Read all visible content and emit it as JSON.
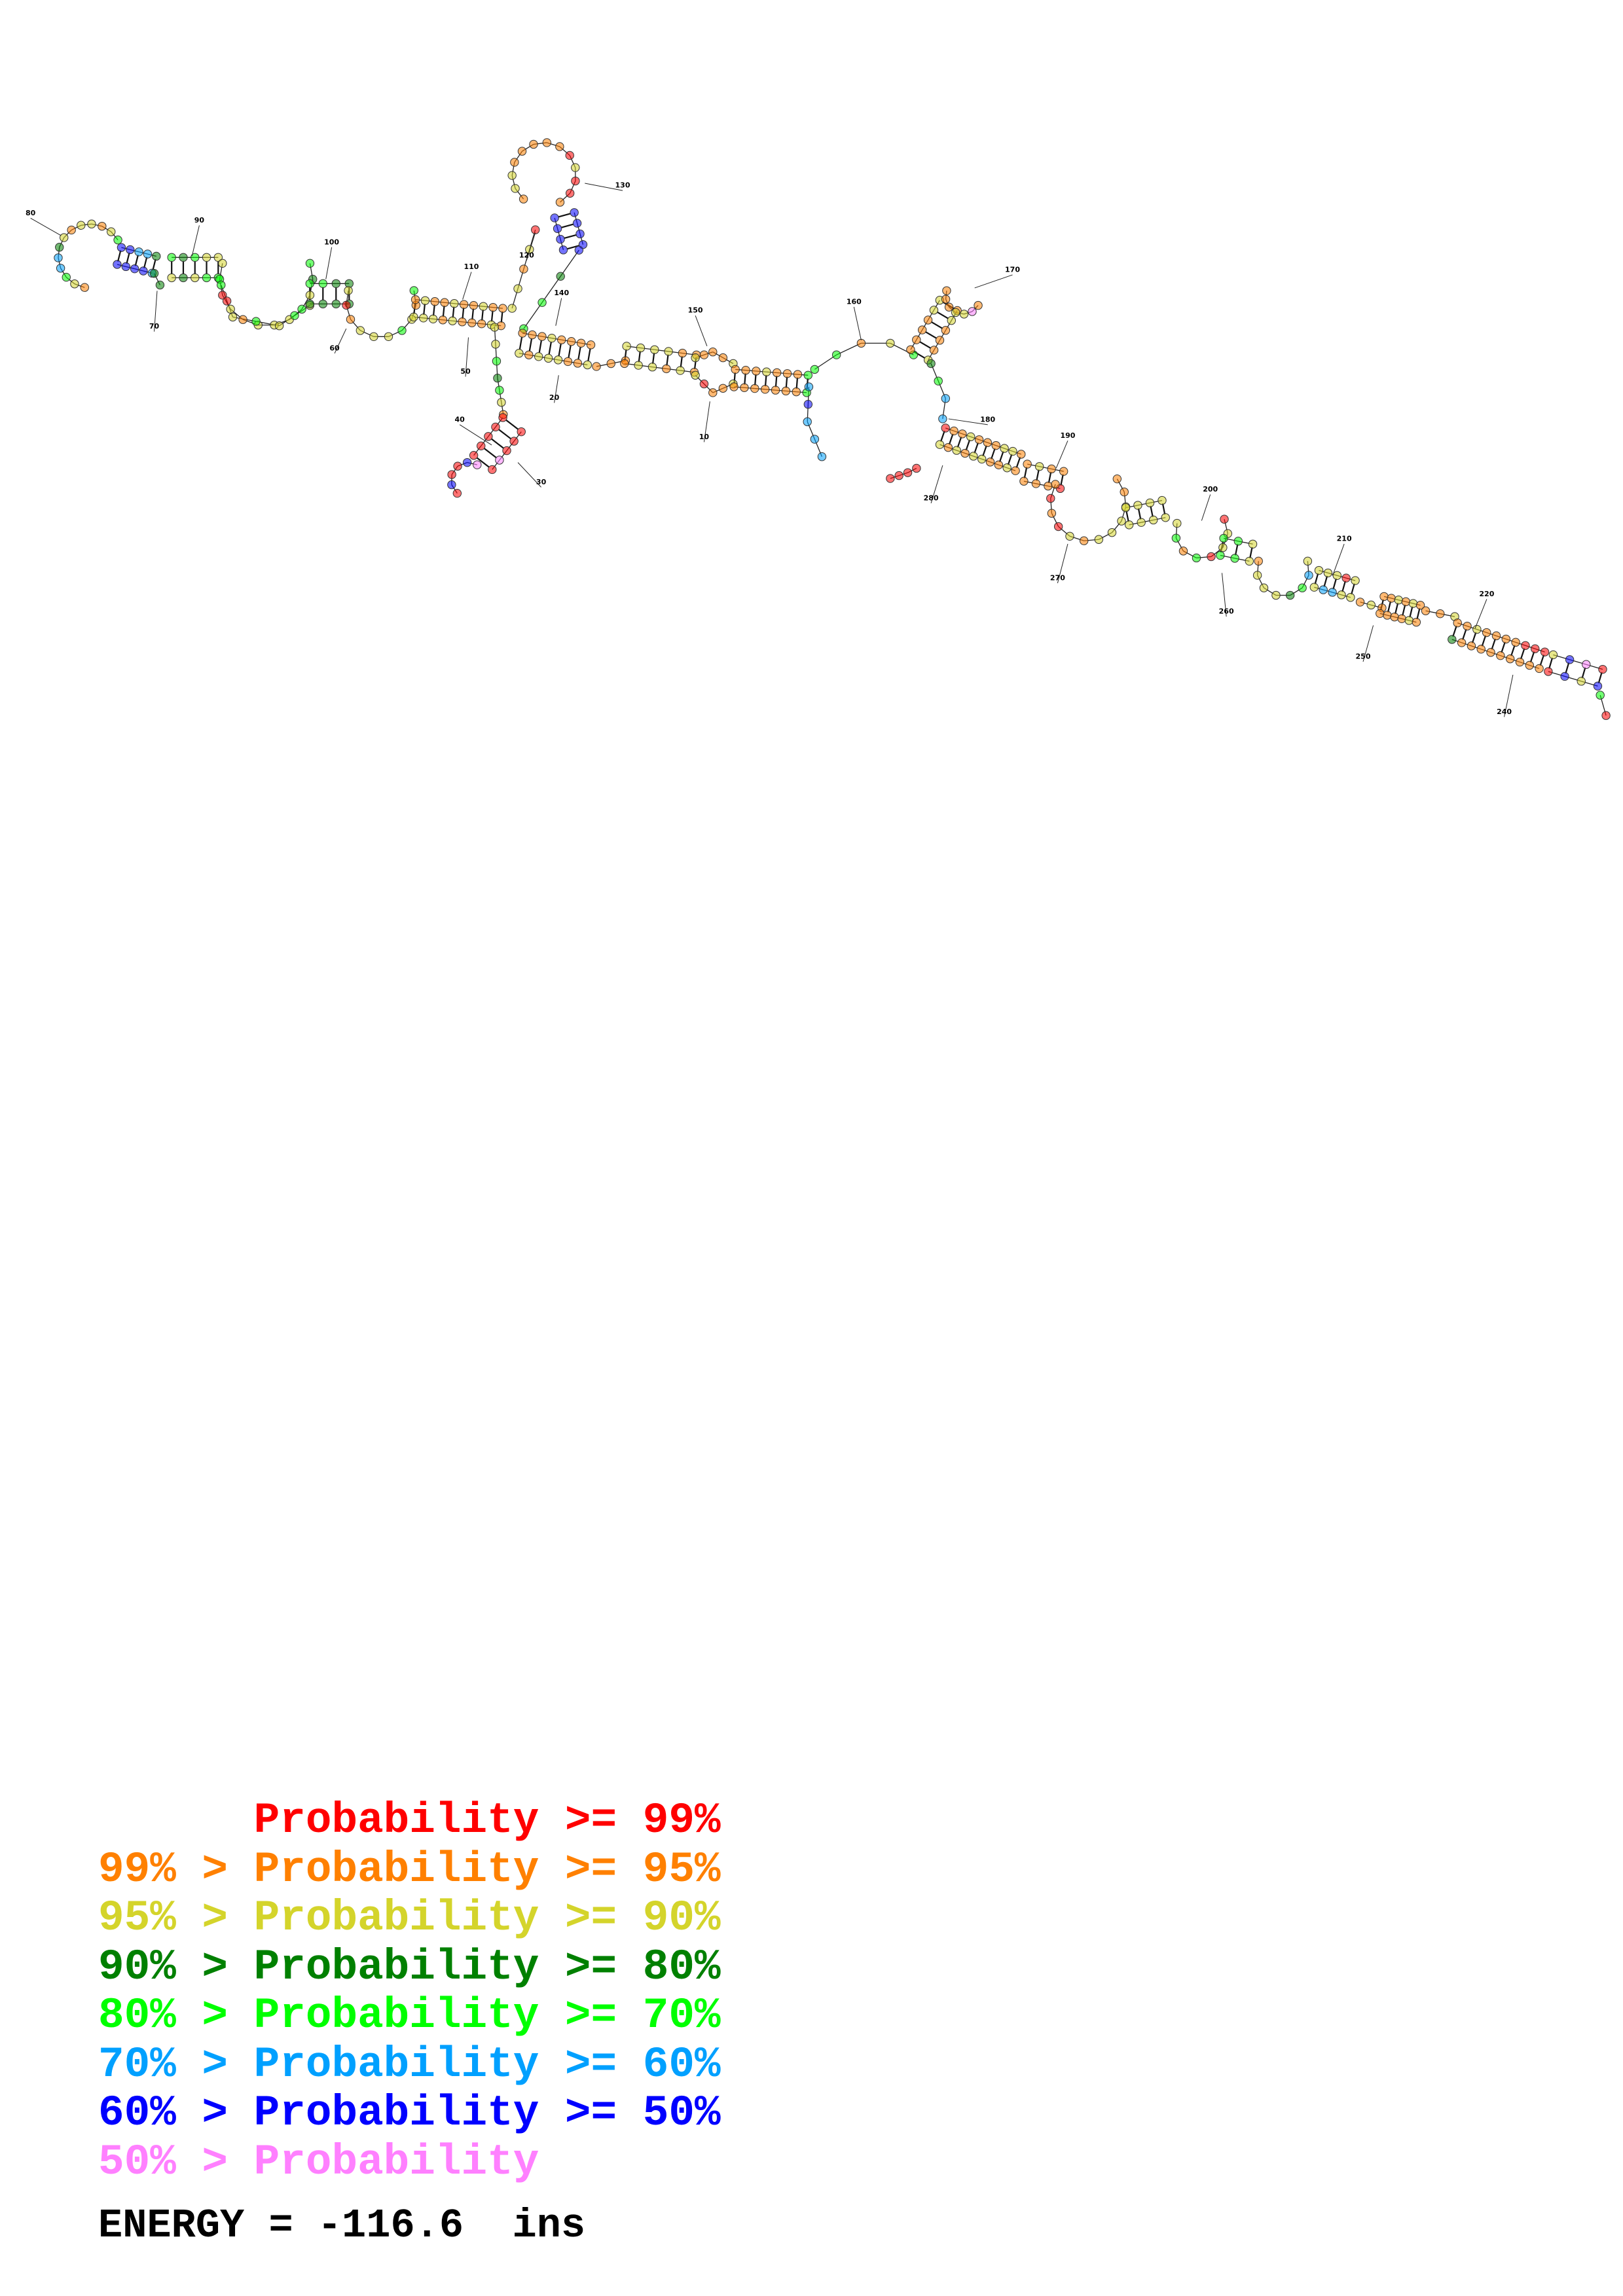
{
  "diagram": {
    "position_labels": [
      "10",
      "20",
      "30",
      "40",
      "50",
      "60",
      "70",
      "80",
      "90",
      "100",
      "110",
      "120",
      "130",
      "140",
      "150",
      "160",
      "170",
      "180",
      "190",
      "200",
      "210",
      "220",
      "240",
      "250",
      "260",
      "270",
      "280"
    ],
    "probability_colors": {
      "p99": "#ff0000",
      "p95": "#ff8000",
      "p90": "#d4d42b",
      "p80": "#008000",
      "p70": "#00ff00",
      "p60": "#00a0ff",
      "p50": "#0000ff",
      "plow": "#ff80ff"
    }
  },
  "legend": {
    "rows": [
      {
        "prefix": "",
        "label": "Probability",
        "suffix": ">= 99%",
        "color": "#ff0000"
      },
      {
        "prefix": "99% >",
        "label": "Probability",
        "suffix": ">= 95%",
        "color": "#ff8000"
      },
      {
        "prefix": "95% >",
        "label": "Probability",
        "suffix": ">= 90%",
        "color": "#d4d42b"
      },
      {
        "prefix": "90% >",
        "label": "Probability",
        "suffix": ">= 80%",
        "color": "#008000"
      },
      {
        "prefix": "80% >",
        "label": "Probability",
        "suffix": ">= 70%",
        "color": "#00ff00"
      },
      {
        "prefix": "70% >",
        "label": "Probability",
        "suffix": ">= 60%",
        "color": "#00a0ff"
      },
      {
        "prefix": "60% >",
        "label": "Probability",
        "suffix": ">= 50%",
        "color": "#0000ff"
      },
      {
        "prefix": "50% >",
        "label": "Probability",
        "suffix": "",
        "color": "#ff80ff"
      }
    ],
    "energy_text": "ENERGY = -116.6  ins"
  }
}
